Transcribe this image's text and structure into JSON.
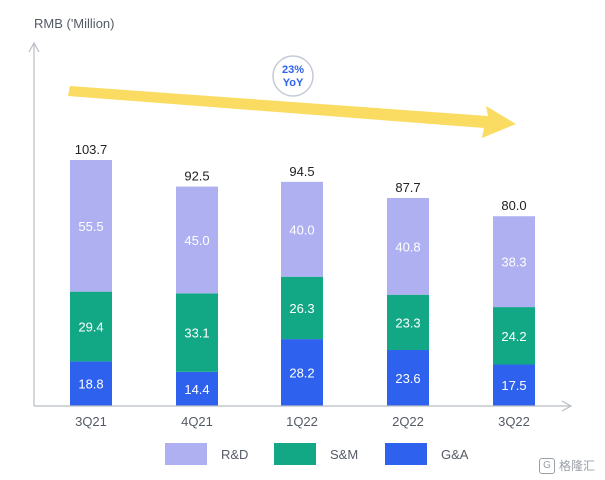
{
  "y_axis_title": "RMB ('Million)",
  "yoy_badge": {
    "value": "23%",
    "label": "YoY"
  },
  "colors": {
    "rd": "#aeb0f2",
    "sm": "#13a885",
    "ga": "#2e62ee",
    "arrow": "#fbdc63",
    "axis": "#b8bcc4",
    "badge_text": "#2e62ee"
  },
  "legend": [
    {
      "key": "rd",
      "label": "R&D"
    },
    {
      "key": "sm",
      "label": "S&M"
    },
    {
      "key": "ga",
      "label": "G&A"
    }
  ],
  "watermark": "格隆汇",
  "chart_data": {
    "type": "bar",
    "stacked": true,
    "categories": [
      "3Q21",
      "4Q21",
      "1Q22",
      "2Q22",
      "3Q22"
    ],
    "series": [
      {
        "name": "G&A",
        "values": [
          18.8,
          14.4,
          28.2,
          23.6,
          17.5
        ]
      },
      {
        "name": "S&M",
        "values": [
          29.4,
          33.1,
          26.3,
          23.3,
          24.2
        ]
      },
      {
        "name": "R&D",
        "values": [
          55.5,
          45.0,
          40.0,
          40.8,
          38.3
        ]
      }
    ],
    "totals": [
      "103.7",
      "92.5",
      "94.5",
      "87.7",
      "80.0"
    ],
    "value_labels": {
      "G&A": [
        "18.8",
        "14.4",
        "28.2",
        "23.6",
        "17.5"
      ],
      "S&M": [
        "29.4",
        "33.1",
        "26.3",
        "23.3",
        "24.2"
      ],
      "R&D": [
        "55.5",
        "45.0",
        "40.0",
        "40.8",
        "38.3"
      ]
    },
    "ylabel": "RMB ('Million)",
    "ylim": [
      0,
      103.7
    ],
    "grid": false,
    "legend_position": "bottom"
  }
}
